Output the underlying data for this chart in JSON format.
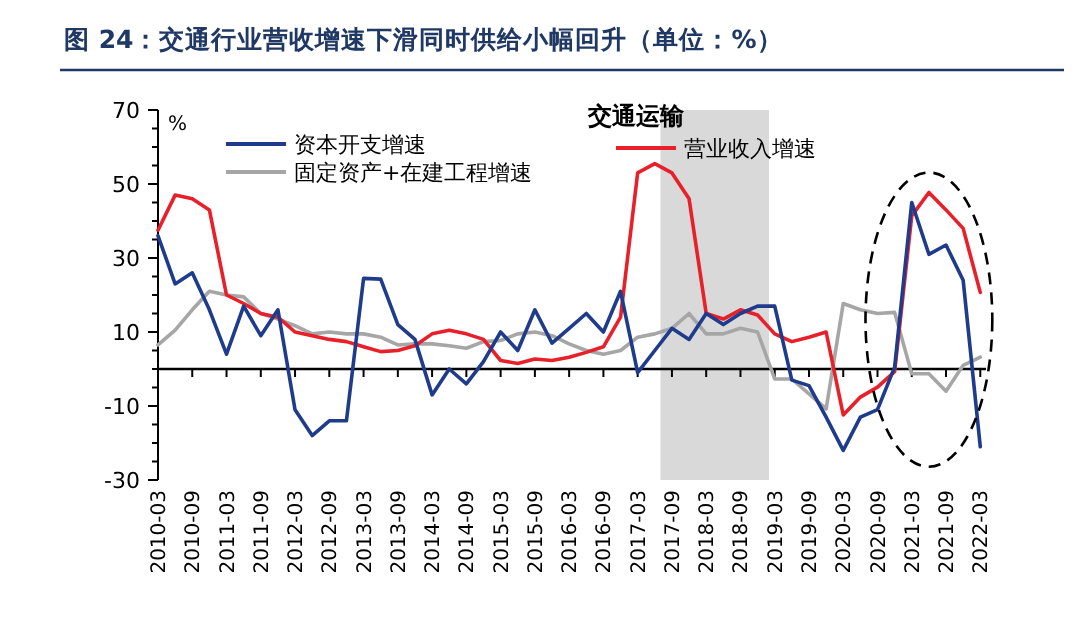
{
  "chart_data": {
    "type": "line",
    "title": "图 24：交通行业营收增速下滑同时供给小幅回升（单位：%）",
    "subtitle": "交通运输",
    "ylabel": "%",
    "x": [
      "2010-03",
      "2010-06",
      "2010-09",
      "2010-12",
      "2011-03",
      "2011-06",
      "2011-09",
      "2011-12",
      "2012-03",
      "2012-06",
      "2012-09",
      "2012-12",
      "2013-03",
      "2013-06",
      "2013-09",
      "2013-12",
      "2014-03",
      "2014-06",
      "2014-09",
      "2014-12",
      "2015-03",
      "2015-06",
      "2015-09",
      "2015-12",
      "2016-03",
      "2016-06",
      "2016-09",
      "2016-12",
      "2017-03",
      "2017-06",
      "2017-09",
      "2017-12",
      "2018-03",
      "2018-06",
      "2018-09",
      "2018-12",
      "2019-03",
      "2019-06",
      "2019-09",
      "2019-12",
      "2020-03",
      "2020-06",
      "2020-09",
      "2020-12",
      "2021-03",
      "2021-06",
      "2021-09",
      "2021-12",
      "2022-03"
    ],
    "series": [
      {
        "name": "资本开支增速",
        "color": "#1f3b8c",
        "values": [
          36,
          23,
          26,
          16,
          4,
          17,
          9,
          16,
          -11,
          -18,
          -14,
          -14,
          24.5,
          24.3,
          12,
          8,
          -7,
          0,
          -4,
          2,
          10,
          5,
          16,
          7,
          11,
          15,
          10,
          21,
          -1,
          5,
          11,
          8,
          15,
          12,
          15,
          17,
          17,
          -3,
          -4.5,
          -13,
          -22,
          -13,
          -11,
          0.5,
          45,
          31,
          33.5,
          24,
          -21
        ]
      },
      {
        "name": "营业收入增速",
        "color": "#e8202a",
        "values": [
          37.5,
          47,
          46,
          43,
          20,
          17.7,
          15,
          14,
          10,
          9,
          8,
          7.4,
          6,
          4.7,
          5,
          6.3,
          9.5,
          10.5,
          9.5,
          8,
          2.3,
          1.5,
          2.7,
          2.3,
          3.2,
          4.5,
          6,
          14,
          53,
          55.5,
          53,
          46,
          15,
          13.5,
          16,
          14.6,
          9.5,
          7.4,
          8.6,
          10,
          -12.4,
          -7.6,
          -4.9,
          -0.7,
          41.4,
          47.7,
          43,
          38,
          20.7
        ]
      },
      {
        "name": "固定资产+在建工程增速",
        "color": "#a6a6a6",
        "values": [
          6.5,
          10.5,
          16,
          21,
          20,
          19.5,
          15,
          13.5,
          11.7,
          9.5,
          10,
          9.5,
          9.5,
          8.6,
          6.5,
          6.8,
          6.8,
          6.3,
          5.6,
          7.4,
          7.7,
          9.5,
          10,
          9,
          6.8,
          5,
          4,
          5,
          8.6,
          9.5,
          11,
          15,
          9.5,
          9.5,
          11,
          10,
          -2.7,
          -2.7,
          -6.7,
          -10.8,
          17.7,
          16,
          15,
          15.3,
          -1.3,
          -1.3,
          -6,
          1,
          3.2
        ]
      }
    ],
    "xlim": [
      "2010-03",
      "2022-04"
    ],
    "xticks": [
      {
        "value": "2010-03",
        "label": "2010-03"
      },
      {
        "value": "2010-09",
        "label": "2010-09"
      },
      {
        "value": "2011-03",
        "label": "2011-03"
      },
      {
        "value": "2011-09",
        "label": "2011-09"
      },
      {
        "value": "2012-03",
        "label": "2012-03"
      },
      {
        "value": "2012-09",
        "label": "2012-09"
      },
      {
        "value": "2013-03",
        "label": "2013-03"
      },
      {
        "value": "2013-09",
        "label": "2013-09"
      },
      {
        "value": "2014-03",
        "label": "2014-03"
      },
      {
        "value": "2014-09",
        "label": "2014-09"
      },
      {
        "value": "2015-03",
        "label": "2015-03"
      },
      {
        "value": "2015-09",
        "label": "2015-09"
      },
      {
        "value": "2016-03",
        "label": "2016-03"
      },
      {
        "value": "2016-09",
        "label": "2016-09"
      },
      {
        "value": "2017-03",
        "label": "2017-03"
      },
      {
        "value": "2017-09",
        "label": "2017-09"
      },
      {
        "value": "2018-03",
        "label": "2018-03"
      },
      {
        "value": "2018-09",
        "label": "2018-09"
      },
      {
        "value": "2019-03",
        "label": "2019-03"
      },
      {
        "value": "2019-09",
        "label": "2019-09"
      },
      {
        "value": "2020-03",
        "label": "2020-03"
      },
      {
        "value": "2020-09",
        "label": "2020-09"
      },
      {
        "value": "2021-03",
        "label": "2021-03"
      },
      {
        "value": "2021-09",
        "label": "2021-09"
      },
      {
        "value": "2022-03",
        "label": "2022-03"
      }
    ],
    "ylim": [
      -30,
      70
    ],
    "yticks": [
      -30,
      -10,
      10,
      30,
      50,
      70
    ],
    "bands": [
      {
        "axis": "x",
        "from": "2017-07",
        "to": "2019-02",
        "color": "#d9d9d9"
      }
    ],
    "legend": "top",
    "grid": false,
    "marker": "none",
    "line_style": "solid"
  }
}
